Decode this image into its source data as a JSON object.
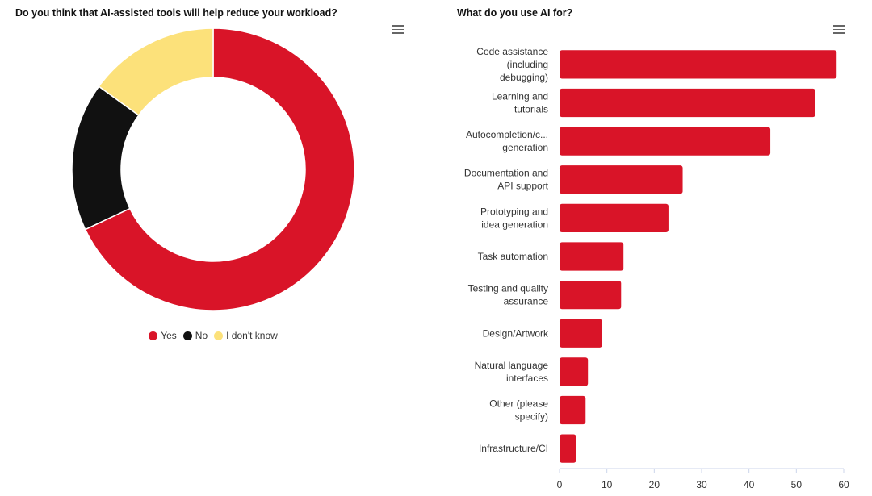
{
  "chart_data": [
    {
      "type": "pie",
      "title": "Do you think that AI-assisted tools will help reduce your workload?",
      "donut": true,
      "categories": [
        "Yes",
        "No",
        "I don't know"
      ],
      "values": [
        68,
        17,
        15
      ],
      "colors": [
        "#d91428",
        "#111111",
        "#fce17a"
      ],
      "legend_position": "bottom"
    },
    {
      "type": "bar",
      "orientation": "horizontal",
      "title": "What do you use AI for?",
      "categories": [
        "Code assistance (including debugging)",
        "Learning and tutorials",
        "Autocompletion/c... generation",
        "Documentation and API support",
        "Prototyping and idea generation",
        "Task automation",
        "Testing and quality assurance",
        "Design/Artwork",
        "Natural language interfaces",
        "Other (please specify)",
        "Infrastructure/CI"
      ],
      "category_lines": [
        [
          "Code assistance",
          "(including",
          "debugging)"
        ],
        [
          "Learning and",
          "tutorials"
        ],
        [
          "Autocompletion/c...",
          "generation"
        ],
        [
          "Documentation and",
          "API support"
        ],
        [
          "Prototyping and",
          "idea generation"
        ],
        [
          "Task automation"
        ],
        [
          "Testing and quality",
          "assurance"
        ],
        [
          "Design/Artwork"
        ],
        [
          "Natural language",
          "interfaces"
        ],
        [
          "Other (please",
          "specify)"
        ],
        [
          "Infrastructure/CI"
        ]
      ],
      "values": [
        58.5,
        54,
        44.5,
        26,
        23,
        13.5,
        13,
        9,
        6,
        5.5,
        3.5
      ],
      "xlim": [
        0,
        60
      ],
      "xticks": [
        0,
        10,
        20,
        30,
        40,
        50,
        60
      ],
      "color": "#d91428",
      "legend": false
    }
  ],
  "icons": {
    "menu_left": "hamburger-menu-icon",
    "menu_right": "hamburger-menu-icon"
  }
}
